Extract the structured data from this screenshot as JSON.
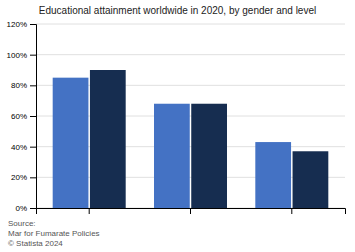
{
  "chart_data": {
    "type": "bar",
    "title": "Educational attainment worldwide in 2020, by gender and level",
    "categories": [
      null,
      null,
      null
    ],
    "series": [
      {
        "color": "#4472c4",
        "values": [
          85,
          68,
          43
        ]
      },
      {
        "color": "#162d50",
        "values": [
          90,
          68,
          37
        ]
      }
    ],
    "ylim": [
      0,
      120
    ],
    "yticks": [
      {
        "value": 0,
        "label": "0%"
      },
      {
        "value": 20,
        "label": "20%"
      },
      {
        "value": 40,
        "label": "40%"
      },
      {
        "value": 60,
        "label": "60%"
      },
      {
        "value": 80,
        "label": "80%"
      },
      {
        "value": 100,
        "label": "100%"
      },
      {
        "value": 120,
        "label": "120%"
      }
    ],
    "grid": true,
    "annotations": [
      "Source:",
      "Mar for Fumarate Policies",
      "© Statista 2024"
    ]
  }
}
